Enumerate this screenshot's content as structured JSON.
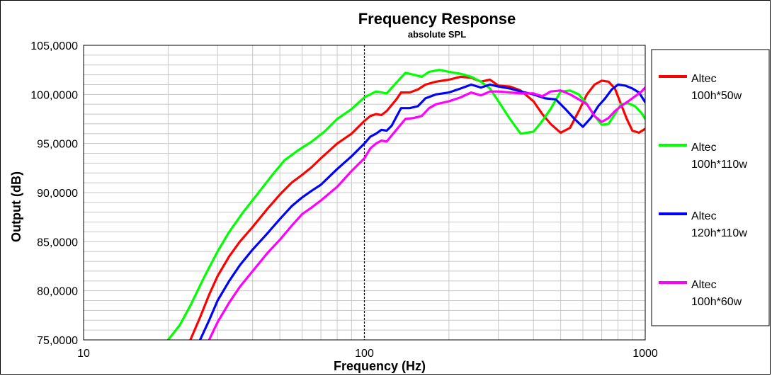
{
  "chart_data": {
    "type": "line",
    "title": "Frequency Response",
    "subtitle": "absolute SPL",
    "xlabel": "Frequency (Hz)",
    "ylabel": "Output (dB)",
    "x_scale": "log",
    "xlim": [
      10,
      1000
    ],
    "ylim": [
      75,
      105
    ],
    "x_ticks": [
      "10",
      "100",
      "1000"
    ],
    "y_ticks": [
      "75,0000",
      "80,0000",
      "85,0000",
      "90,0000",
      "95,0000",
      "100,0000",
      "105,0000"
    ],
    "grid": true,
    "legend_position": "right",
    "series": [
      {
        "name": "Altec 100h*50w",
        "legend_lines": [
          "Altec",
          "100h*50w"
        ],
        "color": "#ff0000",
        "points": [
          [
            24,
            75
          ],
          [
            26,
            77.3
          ],
          [
            28,
            79.6
          ],
          [
            30,
            81.5
          ],
          [
            33,
            83.5
          ],
          [
            36,
            85
          ],
          [
            40,
            86.5
          ],
          [
            45,
            88.3
          ],
          [
            50,
            89.8
          ],
          [
            55,
            91
          ],
          [
            60,
            91.8
          ],
          [
            65,
            92.6
          ],
          [
            70,
            93.5
          ],
          [
            80,
            95
          ],
          [
            90,
            96
          ],
          [
            100,
            97.3
          ],
          [
            105,
            97.8
          ],
          [
            110,
            98
          ],
          [
            115,
            97.9
          ],
          [
            120,
            98.3
          ],
          [
            130,
            99.5
          ],
          [
            135,
            100.2
          ],
          [
            145,
            100.2
          ],
          [
            155,
            100.5
          ],
          [
            165,
            101
          ],
          [
            180,
            101.3
          ],
          [
            200,
            101.5
          ],
          [
            220,
            101.8
          ],
          [
            240,
            101.7
          ],
          [
            260,
            101.3
          ],
          [
            280,
            101.5
          ],
          [
            300,
            100.9
          ],
          [
            330,
            100.8
          ],
          [
            360,
            100.4
          ],
          [
            400,
            99.3
          ],
          [
            430,
            98
          ],
          [
            460,
            97
          ],
          [
            500,
            96.1
          ],
          [
            540,
            96.6
          ],
          [
            580,
            98.3
          ],
          [
            620,
            100
          ],
          [
            660,
            101
          ],
          [
            700,
            101.4
          ],
          [
            740,
            101.3
          ],
          [
            780,
            100.6
          ],
          [
            820,
            99
          ],
          [
            860,
            97.5
          ],
          [
            900,
            96.3
          ],
          [
            950,
            96.1
          ],
          [
            1000,
            96.5
          ]
        ]
      },
      {
        "name": "Altec 100h*110w",
        "legend_lines": [
          "Altec",
          "100h*110w"
        ],
        "color": "#00ff00",
        "points": [
          [
            20,
            75
          ],
          [
            22,
            76.5
          ],
          [
            24,
            78.5
          ],
          [
            27,
            81.5
          ],
          [
            30,
            84
          ],
          [
            33,
            86
          ],
          [
            37,
            88
          ],
          [
            42,
            90
          ],
          [
            47,
            91.8
          ],
          [
            52,
            93.3
          ],
          [
            58,
            94.3
          ],
          [
            65,
            95.2
          ],
          [
            72,
            96.2
          ],
          [
            80,
            97.5
          ],
          [
            90,
            98.5
          ],
          [
            100,
            99.7
          ],
          [
            110,
            100.3
          ],
          [
            120,
            100.1
          ],
          [
            130,
            101.2
          ],
          [
            140,
            102.2
          ],
          [
            150,
            102
          ],
          [
            160,
            101.8
          ],
          [
            170,
            102.3
          ],
          [
            185,
            102.5
          ],
          [
            200,
            102.3
          ],
          [
            220,
            102.1
          ],
          [
            240,
            101.8
          ],
          [
            260,
            101.3
          ],
          [
            280,
            100.6
          ],
          [
            300,
            99.3
          ],
          [
            330,
            97.5
          ],
          [
            360,
            96
          ],
          [
            400,
            96.2
          ],
          [
            430,
            97.3
          ],
          [
            460,
            98.5
          ],
          [
            500,
            100.3
          ],
          [
            540,
            100.4
          ],
          [
            580,
            100
          ],
          [
            620,
            99
          ],
          [
            660,
            97.8
          ],
          [
            700,
            96.9
          ],
          [
            740,
            97
          ],
          [
            780,
            98
          ],
          [
            820,
            99
          ],
          [
            870,
            99.1
          ],
          [
            920,
            98.8
          ],
          [
            970,
            98.1
          ],
          [
            1000,
            97.5
          ]
        ]
      },
      {
        "name": "Altec 120h*110w",
        "legend_lines": [
          "Altec",
          "120h*110w"
        ],
        "color": "#0000ff",
        "points": [
          [
            26,
            75
          ],
          [
            28,
            77
          ],
          [
            30,
            79
          ],
          [
            33,
            81
          ],
          [
            36,
            82.6
          ],
          [
            40,
            84.2
          ],
          [
            45,
            85.8
          ],
          [
            50,
            87.3
          ],
          [
            55,
            88.6
          ],
          [
            60,
            89.5
          ],
          [
            65,
            90.2
          ],
          [
            70,
            90.8
          ],
          [
            80,
            92.4
          ],
          [
            90,
            93.7
          ],
          [
            100,
            95
          ],
          [
            105,
            95.7
          ],
          [
            110,
            96
          ],
          [
            115,
            96.4
          ],
          [
            120,
            96.3
          ],
          [
            125,
            96.8
          ],
          [
            135,
            98.6
          ],
          [
            145,
            98.6
          ],
          [
            155,
            98.8
          ],
          [
            165,
            99.6
          ],
          [
            180,
            100
          ],
          [
            200,
            100.2
          ],
          [
            220,
            100.6
          ],
          [
            240,
            101
          ],
          [
            260,
            100.7
          ],
          [
            280,
            101
          ],
          [
            300,
            100.8
          ],
          [
            330,
            100.6
          ],
          [
            360,
            100.3
          ],
          [
            400,
            100
          ],
          [
            440,
            99.6
          ],
          [
            480,
            99.5
          ],
          [
            520,
            98.5
          ],
          [
            560,
            97.5
          ],
          [
            600,
            96.7
          ],
          [
            640,
            97.6
          ],
          [
            680,
            98.8
          ],
          [
            720,
            99.6
          ],
          [
            760,
            100.5
          ],
          [
            800,
            101
          ],
          [
            850,
            100.9
          ],
          [
            900,
            100.6
          ],
          [
            950,
            100.2
          ],
          [
            1000,
            99.2
          ]
        ]
      },
      {
        "name": "Altec 100h*60w",
        "legend_lines": [
          "Altec",
          "100h*60w"
        ],
        "color": "#ff00ff",
        "points": [
          [
            28,
            75
          ],
          [
            30,
            76.8
          ],
          [
            33,
            78.8
          ],
          [
            36,
            80.4
          ],
          [
            40,
            82
          ],
          [
            45,
            83.8
          ],
          [
            50,
            85.2
          ],
          [
            55,
            86.6
          ],
          [
            60,
            87.8
          ],
          [
            65,
            88.5
          ],
          [
            70,
            89.2
          ],
          [
            80,
            90.6
          ],
          [
            90,
            92.2
          ],
          [
            100,
            93.5
          ],
          [
            105,
            94.5
          ],
          [
            110,
            95
          ],
          [
            115,
            95.3
          ],
          [
            120,
            95.2
          ],
          [
            130,
            96.4
          ],
          [
            140,
            97.5
          ],
          [
            150,
            97.6
          ],
          [
            160,
            97.8
          ],
          [
            170,
            98.6
          ],
          [
            180,
            99
          ],
          [
            200,
            99.3
          ],
          [
            220,
            99.7
          ],
          [
            240,
            100.2
          ],
          [
            260,
            99.9
          ],
          [
            280,
            100.3
          ],
          [
            300,
            100.3
          ],
          [
            330,
            100.2
          ],
          [
            360,
            100.1
          ],
          [
            400,
            100.1
          ],
          [
            430,
            99.8
          ],
          [
            460,
            100.3
          ],
          [
            500,
            100.4
          ],
          [
            540,
            100
          ],
          [
            580,
            99.5
          ],
          [
            620,
            99
          ],
          [
            660,
            97.8
          ],
          [
            700,
            97.2
          ],
          [
            740,
            97.6
          ],
          [
            780,
            98.3
          ],
          [
            820,
            98.8
          ],
          [
            870,
            99.3
          ],
          [
            920,
            99.8
          ],
          [
            970,
            100.3
          ],
          [
            1000,
            100.7
          ]
        ]
      }
    ]
  }
}
